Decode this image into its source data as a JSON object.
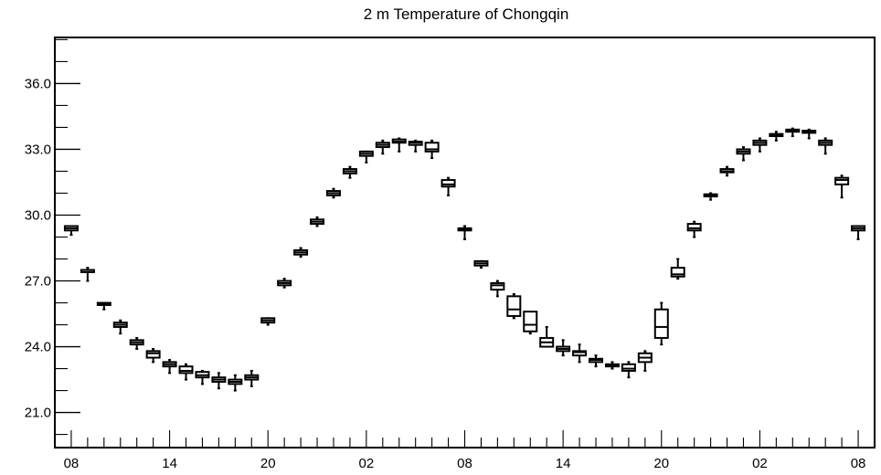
{
  "chart_data": {
    "type": "boxplot",
    "title": "2 m Temperature of Chongqin",
    "xlabel": "",
    "ylabel": "",
    "ylim": [
      19.4,
      38.1
    ],
    "y_ticks": [
      "21.0",
      "24.0",
      "27.0",
      "30.0",
      "33.0",
      "36.0"
    ],
    "x_ticks": [
      {
        "step": 0,
        "label": "08"
      },
      {
        "step": 6,
        "label": "14"
      },
      {
        "step": 12,
        "label": "20"
      },
      {
        "step": 18,
        "label": "02"
      },
      {
        "step": 24,
        "label": "08"
      },
      {
        "step": 30,
        "label": "14"
      },
      {
        "step": 36,
        "label": "20"
      },
      {
        "step": 42,
        "label": "02"
      },
      {
        "step": 48,
        "label": "08"
      }
    ],
    "x_step_range": [
      -1,
      49
    ],
    "grid": false,
    "boxes": [
      {
        "step": 0,
        "min": 29.1,
        "q1": 29.3,
        "median": 29.4,
        "q3": 29.5,
        "max": 29.5
      },
      {
        "step": 1,
        "min": 27.0,
        "q1": 27.4,
        "median": 27.4,
        "q3": 27.5,
        "max": 27.6
      },
      {
        "step": 2,
        "min": 25.7,
        "q1": 25.9,
        "median": 25.95,
        "q3": 26.0,
        "max": 26.0
      },
      {
        "step": 3,
        "min": 24.6,
        "q1": 24.9,
        "median": 25.0,
        "q3": 25.1,
        "max": 25.2
      },
      {
        "step": 4,
        "min": 23.9,
        "q1": 24.1,
        "median": 24.2,
        "q3": 24.3,
        "max": 24.4
      },
      {
        "step": 5,
        "min": 23.3,
        "q1": 23.5,
        "median": 23.7,
        "q3": 23.8,
        "max": 23.9
      },
      {
        "step": 6,
        "min": 22.8,
        "q1": 23.1,
        "median": 23.2,
        "q3": 23.3,
        "max": 23.4
      },
      {
        "step": 7,
        "min": 22.5,
        "q1": 22.8,
        "median": 22.9,
        "q3": 23.1,
        "max": 23.2
      },
      {
        "step": 8,
        "min": 22.3,
        "q1": 22.6,
        "median": 22.7,
        "q3": 22.85,
        "max": 22.9
      },
      {
        "step": 9,
        "min": 22.1,
        "q1": 22.4,
        "median": 22.5,
        "q3": 22.6,
        "max": 22.8
      },
      {
        "step": 10,
        "min": 22.0,
        "q1": 22.3,
        "median": 22.4,
        "q3": 22.5,
        "max": 22.7
      },
      {
        "step": 11,
        "min": 22.2,
        "q1": 22.5,
        "median": 22.6,
        "q3": 22.7,
        "max": 22.9
      },
      {
        "step": 12,
        "min": 25.0,
        "q1": 25.1,
        "median": 25.2,
        "q3": 25.3,
        "max": 25.3
      },
      {
        "step": 13,
        "min": 26.7,
        "q1": 26.8,
        "median": 26.9,
        "q3": 27.0,
        "max": 27.1
      },
      {
        "step": 14,
        "min": 28.1,
        "q1": 28.2,
        "median": 28.3,
        "q3": 28.4,
        "max": 28.5
      },
      {
        "step": 15,
        "min": 29.5,
        "q1": 29.6,
        "median": 29.7,
        "q3": 29.8,
        "max": 29.9
      },
      {
        "step": 16,
        "min": 30.8,
        "q1": 30.9,
        "median": 31.0,
        "q3": 31.1,
        "max": 31.2
      },
      {
        "step": 17,
        "min": 31.7,
        "q1": 31.9,
        "median": 32.0,
        "q3": 32.1,
        "max": 32.2
      },
      {
        "step": 18,
        "min": 32.4,
        "q1": 32.7,
        "median": 32.8,
        "q3": 32.9,
        "max": 32.9
      },
      {
        "step": 19,
        "min": 32.8,
        "q1": 33.1,
        "median": 33.2,
        "q3": 33.3,
        "max": 33.4
      },
      {
        "step": 20,
        "min": 32.9,
        "q1": 33.3,
        "median": 33.35,
        "q3": 33.45,
        "max": 33.5
      },
      {
        "step": 21,
        "min": 32.9,
        "q1": 33.2,
        "median": 33.3,
        "q3": 33.35,
        "max": 33.4
      },
      {
        "step": 22,
        "min": 32.6,
        "q1": 32.9,
        "median": 33.0,
        "q3": 33.3,
        "max": 33.4
      },
      {
        "step": 23,
        "min": 30.9,
        "q1": 31.3,
        "median": 31.4,
        "q3": 31.6,
        "max": 31.7
      },
      {
        "step": 24,
        "min": 28.9,
        "q1": 29.3,
        "median": 29.35,
        "q3": 29.4,
        "max": 29.5
      },
      {
        "step": 25,
        "min": 27.6,
        "q1": 27.7,
        "median": 27.8,
        "q3": 27.9,
        "max": 27.9
      },
      {
        "step": 26,
        "min": 26.3,
        "q1": 26.6,
        "median": 26.8,
        "q3": 26.9,
        "max": 27.0
      },
      {
        "step": 27,
        "min": 25.3,
        "q1": 25.4,
        "median": 25.7,
        "q3": 26.3,
        "max": 26.4
      },
      {
        "step": 28,
        "min": 24.6,
        "q1": 24.7,
        "median": 25.0,
        "q3": 25.6,
        "max": 25.6
      },
      {
        "step": 29,
        "min": 24.0,
        "q1": 24.0,
        "median": 24.2,
        "q3": 24.4,
        "max": 24.9
      },
      {
        "step": 30,
        "min": 23.6,
        "q1": 23.8,
        "median": 23.9,
        "q3": 24.0,
        "max": 24.3
      },
      {
        "step": 31,
        "min": 23.3,
        "q1": 23.6,
        "median": 23.75,
        "q3": 23.8,
        "max": 24.1
      },
      {
        "step": 32,
        "min": 23.1,
        "q1": 23.3,
        "median": 23.4,
        "q3": 23.45,
        "max": 23.6
      },
      {
        "step": 33,
        "min": 23.0,
        "q1": 23.1,
        "median": 23.15,
        "q3": 23.2,
        "max": 23.3
      },
      {
        "step": 34,
        "min": 22.6,
        "q1": 22.9,
        "median": 23.0,
        "q3": 23.2,
        "max": 23.3
      },
      {
        "step": 35,
        "min": 22.9,
        "q1": 23.3,
        "median": 23.5,
        "q3": 23.7,
        "max": 23.8
      },
      {
        "step": 36,
        "min": 24.1,
        "q1": 24.4,
        "median": 24.9,
        "q3": 25.7,
        "max": 26.0
      },
      {
        "step": 37,
        "min": 27.1,
        "q1": 27.2,
        "median": 27.3,
        "q3": 27.6,
        "max": 28.0
      },
      {
        "step": 38,
        "min": 29.0,
        "q1": 29.3,
        "median": 29.4,
        "q3": 29.6,
        "max": 29.7
      },
      {
        "step": 39,
        "min": 30.7,
        "q1": 30.85,
        "median": 30.9,
        "q3": 30.95,
        "max": 31.0
      },
      {
        "step": 40,
        "min": 31.8,
        "q1": 31.95,
        "median": 32.0,
        "q3": 32.1,
        "max": 32.2
      },
      {
        "step": 41,
        "min": 32.5,
        "q1": 32.8,
        "median": 32.9,
        "q3": 33.0,
        "max": 33.1
      },
      {
        "step": 42,
        "min": 32.9,
        "q1": 33.2,
        "median": 33.3,
        "q3": 33.4,
        "max": 33.5
      },
      {
        "step": 43,
        "min": 33.4,
        "q1": 33.6,
        "median": 33.65,
        "q3": 33.7,
        "max": 33.8
      },
      {
        "step": 44,
        "min": 33.6,
        "q1": 33.8,
        "median": 33.85,
        "q3": 33.9,
        "max": 33.95
      },
      {
        "step": 45,
        "min": 33.5,
        "q1": 33.75,
        "median": 33.8,
        "q3": 33.85,
        "max": 33.9
      },
      {
        "step": 46,
        "min": 32.8,
        "q1": 33.2,
        "median": 33.3,
        "q3": 33.4,
        "max": 33.5
      },
      {
        "step": 47,
        "min": 30.8,
        "q1": 31.4,
        "median": 31.6,
        "q3": 31.7,
        "max": 31.8
      },
      {
        "step": 48,
        "min": 28.9,
        "q1": 29.3,
        "median": 29.4,
        "q3": 29.5,
        "max": 29.5
      }
    ]
  }
}
